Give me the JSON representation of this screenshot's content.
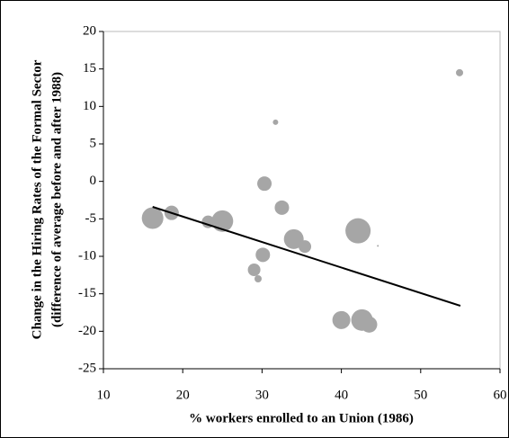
{
  "chart_data": {
    "type": "scatter",
    "x_label": "% workers enrolled to an Union (1986)",
    "y_label": [
      "Change in the Hiring Rates of the Formal Sector",
      "(difference of average before and after 1988)"
    ],
    "xlim": [
      10,
      60
    ],
    "xticks": [
      10,
      20,
      30,
      40,
      50,
      60
    ],
    "ylim": [
      -25,
      20
    ],
    "yticks": [
      -25,
      -20,
      -15,
      -10,
      -5,
      0,
      5,
      10,
      15,
      20
    ],
    "series": [
      {
        "color": "#a6a6a6",
        "x": [
          16.2,
          18.6,
          23.2,
          25.0,
          29.0,
          29.5,
          30.1,
          30.3,
          31.7,
          32.5,
          34.0,
          35.4,
          40.0,
          42.1,
          42.6,
          43.5,
          44.6,
          54.9
        ],
        "values": [
          -4.9,
          -4.2,
          -5.4,
          -5.3,
          -11.8,
          -13.0,
          -9.8,
          -0.3,
          7.9,
          -3.5,
          -7.7,
          -8.7,
          -18.5,
          -6.6,
          -18.5,
          -19.1,
          -8.6,
          14.5
        ],
        "sizes": [
          12,
          8,
          7,
          12,
          7,
          4,
          8,
          8,
          3,
          8,
          11,
          7,
          10,
          14,
          12,
          9,
          1,
          4
        ]
      }
    ],
    "trendline": {
      "color": "#000000",
      "x": [
        16.2,
        55.0
      ],
      "values": [
        -3.4,
        -16.6
      ]
    }
  }
}
